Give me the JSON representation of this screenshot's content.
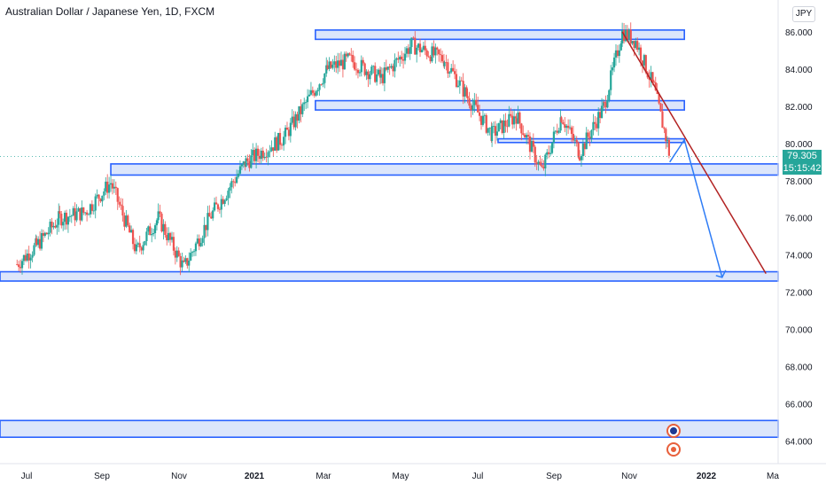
{
  "title": "Australian Dollar / Japanese Yen, 1D, FXCM",
  "currency": "JPY",
  "last_price": "79.305",
  "countdown": "15:15:42",
  "colors": {
    "up": "#26a69a",
    "down": "#ef5350",
    "zone_fill": "#dce6fb",
    "zone_stroke": "#2962ff",
    "projection_blue": "#2e7cf6",
    "projection_red": "#b22222",
    "price_badge": "#26a69a",
    "axis_text": "#131722"
  },
  "chart_data": {
    "type": "candlestick",
    "y_axis": {
      "min": 63.4,
      "max": 87.0,
      "ticks": [
        "86.000",
        "84.000",
        "82.000",
        "80.000",
        "78.000",
        "76.000",
        "74.000",
        "72.000",
        "70.000",
        "68.000",
        "66.000",
        "64.000"
      ],
      "tick_values": [
        86,
        84,
        82,
        80,
        78,
        76,
        74,
        72,
        70,
        68,
        66,
        64
      ]
    },
    "x_axis": {
      "labels": [
        "Jul",
        "Sep",
        "Nov",
        "2021",
        "Mar",
        "May",
        "Jul",
        "Sep",
        "Nov",
        "2022",
        "Ma"
      ],
      "bold": [
        "2021",
        "2022"
      ]
    },
    "price_path": [
      {
        "d": "2020-06-15",
        "v": 73.5
      },
      {
        "d": "2020-07-01",
        "v": 74.5
      },
      {
        "d": "2020-07-20",
        "v": 76.0
      },
      {
        "d": "2020-08-10",
        "v": 76.3
      },
      {
        "d": "2020-08-31",
        "v": 77.9
      },
      {
        "d": "2020-09-21",
        "v": 74.2
      },
      {
        "d": "2020-10-09",
        "v": 76.0
      },
      {
        "d": "2020-10-30",
        "v": 73.3
      },
      {
        "d": "2020-11-20",
        "v": 76.0
      },
      {
        "d": "2020-12-20",
        "v": 79.0
      },
      {
        "d": "2021-01-20",
        "v": 80.3
      },
      {
        "d": "2021-02-25",
        "v": 84.0
      },
      {
        "d": "2021-03-15",
        "v": 84.5
      },
      {
        "d": "2021-04-10",
        "v": 83.5
      },
      {
        "d": "2021-05-05",
        "v": 85.3
      },
      {
        "d": "2021-06-01",
        "v": 84.5
      },
      {
        "d": "2021-06-20",
        "v": 82.5
      },
      {
        "d": "2021-07-10",
        "v": 80.5
      },
      {
        "d": "2021-07-30",
        "v": 81.5
      },
      {
        "d": "2021-08-20",
        "v": 78.5
      },
      {
        "d": "2021-09-05",
        "v": 81.5
      },
      {
        "d": "2021-09-20",
        "v": 79.5
      },
      {
        "d": "2021-10-10",
        "v": 82.0
      },
      {
        "d": "2021-10-25",
        "v": 86.0
      },
      {
        "d": "2021-11-05",
        "v": 85.5
      },
      {
        "d": "2021-11-20",
        "v": 83.0
      },
      {
        "d": "2021-12-01",
        "v": 80.0
      },
      {
        "d": "2021-12-03",
        "v": 79.3
      }
    ],
    "zones": [
      {
        "name": "zone-86",
        "from": "2021-02-15",
        "to": "2021-12-15",
        "low": 85.6,
        "high": 86.1
      },
      {
        "name": "zone-82",
        "from": "2021-02-15",
        "to": "2021-12-15",
        "low": 81.8,
        "high": 82.3
      },
      {
        "name": "zone-80",
        "from": "2021-07-15",
        "to": "2021-12-15",
        "low": 80.05,
        "high": 80.25
      },
      {
        "name": "zone-78",
        "from": "2020-08-31",
        "to": "2022-03-31",
        "low": 78.3,
        "high": 78.9
      },
      {
        "name": "zone-72",
        "from": "2020-06-01",
        "to": "2022-03-31",
        "low": 72.6,
        "high": 73.1
      },
      {
        "name": "zone-64",
        "from": "2020-06-01",
        "to": "2022-03-31",
        "low": 64.2,
        "high": 65.1
      }
    ],
    "projection_blue": [
      {
        "d": "2021-12-03",
        "v": 79.0
      },
      {
        "d": "2021-12-15",
        "v": 80.2
      },
      {
        "d": "2022-01-15",
        "v": 72.8
      }
    ],
    "projection_red": [
      {
        "d": "2021-10-25",
        "v": 86.0
      },
      {
        "d": "2022-02-20",
        "v": 73.0
      }
    ],
    "dotted_price_line": 79.305,
    "x_start": "2020-06-01",
    "x_end": "2022-03-02"
  }
}
